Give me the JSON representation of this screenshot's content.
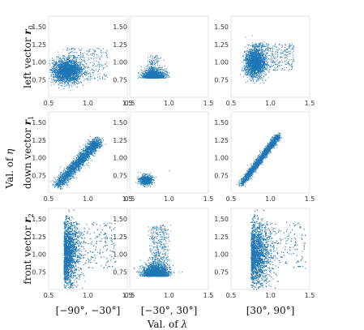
{
  "chart_data": {
    "type": "scatter",
    "layout": "3x3 grid of scatter panels",
    "xlim": [
      0.5,
      1.5
    ],
    "ylim": [
      0.5,
      1.65
    ],
    "xticks": [
      "0.5",
      "1.0",
      "1.5"
    ],
    "yticks": [
      "0.75",
      "1.00",
      "1.25",
      "1.50"
    ],
    "grid": false,
    "point_color": "#1f77b4",
    "xlabel_prefix": "Val. of ",
    "xlabel_symbol": "λ",
    "ylabel_prefix": "Val. of ",
    "ylabel_symbol": "η",
    "rows": [
      {
        "label": "left vector ",
        "vec": "r",
        "sub": "0"
      },
      {
        "label": "down vector ",
        "vec": "r",
        "sub": "1"
      },
      {
        "label": "front vector ",
        "vec": "r",
        "sub": "2"
      }
    ],
    "columns": [
      "[−90°, −30°]",
      "[−30°, 30°]",
      "[30°, 90°]"
    ],
    "panels": [
      [
        {
          "shape": "blob",
          "cx": 0.73,
          "cy": 0.88,
          "sx": 0.09,
          "sy": 0.08,
          "n": 2600,
          "tail_x": 1.25,
          "tail_y": 1.3,
          "tail_frac": 0.12
        },
        {
          "shape": "triangle",
          "cx": 0.8,
          "cy": 0.8,
          "sx": 0.07,
          "sy": 0.05,
          "n": 1300,
          "tail_x": 0.95,
          "tail_y": 1.1,
          "tail_frac": 0.15
        },
        {
          "shape": "blob",
          "cx": 0.8,
          "cy": 1.0,
          "sx": 0.06,
          "sy": 0.1,
          "n": 2600,
          "tail_x": 1.3,
          "tail_y": 1.35,
          "tail_frac": 0.18
        }
      ],
      [
        {
          "shape": "line",
          "x0": 0.6,
          "y0": 0.6,
          "x1": 1.12,
          "y1": 1.24,
          "n": 2200,
          "spread": 0.035
        },
        {
          "shape": "cluster",
          "cx": 0.7,
          "cy": 0.69,
          "sx": 0.04,
          "sy": 0.035,
          "n": 600
        },
        {
          "shape": "line",
          "x0": 0.62,
          "y0": 0.62,
          "x1": 1.1,
          "y1": 1.32,
          "n": 2000,
          "spread": 0.02
        }
      ],
      [
        {
          "shape": "column",
          "cx": 0.76,
          "cy": 1.0,
          "sx": 0.07,
          "sy": 0.22,
          "n": 4000,
          "tail_x": 1.35,
          "tail_y": 1.6,
          "tail_frac": 0.15
        },
        {
          "shape": "triangle",
          "cx": 0.82,
          "cy": 0.72,
          "sx": 0.08,
          "sy": 0.06,
          "n": 2200,
          "tail_x": 1.15,
          "tail_y": 1.42,
          "tail_frac": 0.25
        },
        {
          "shape": "column",
          "cx": 0.84,
          "cy": 1.0,
          "sx": 0.09,
          "sy": 0.22,
          "n": 4000,
          "tail_x": 1.45,
          "tail_y": 1.6,
          "tail_frac": 0.12
        }
      ]
    ]
  }
}
